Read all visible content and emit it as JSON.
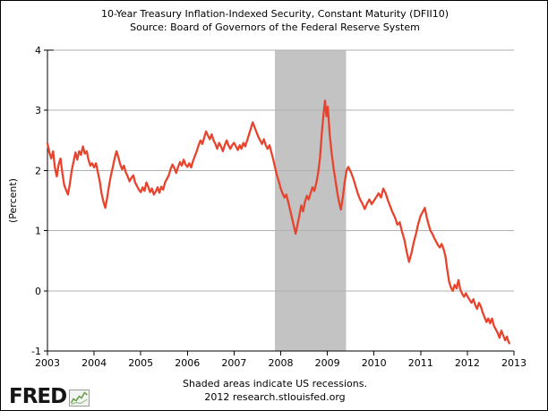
{
  "footer": {
    "note": "Shaded areas indicate US recessions.",
    "credit": "2012 research.stlouisfed.org",
    "logo_text": "FRED"
  },
  "chart_data": {
    "type": "line",
    "title": "10-Year Treasury Inflation-Indexed Security, Constant Maturity (DFII10)",
    "subtitle": "Source: Board of Governors of the Federal Reserve System",
    "xlabel": "",
    "ylabel": "(Percent)",
    "xlim": [
      2003,
      2013
    ],
    "ylim": [
      -1,
      4
    ],
    "x_ticks": [
      2003,
      2004,
      2005,
      2006,
      2007,
      2008,
      2009,
      2010,
      2011,
      2012,
      2013
    ],
    "y_ticks": [
      4,
      3,
      2,
      1,
      0,
      -1
    ],
    "grid": true,
    "legend_position": "none",
    "line_color": "#e8432d",
    "grid_color": "#b0b0b0",
    "axis_color": "#000000",
    "recession_band_color": "#c3c3c3",
    "recession_bands": [
      {
        "start": 2007.88,
        "end": 2009.4
      }
    ],
    "series": [
      {
        "name": "DFII10",
        "points": [
          [
            2003.0,
            2.45
          ],
          [
            2003.04,
            2.3
          ],
          [
            2003.08,
            2.2
          ],
          [
            2003.12,
            2.32
          ],
          [
            2003.16,
            2.05
          ],
          [
            2003.2,
            1.9
          ],
          [
            2003.24,
            2.1
          ],
          [
            2003.28,
            2.2
          ],
          [
            2003.32,
            1.95
          ],
          [
            2003.36,
            1.75
          ],
          [
            2003.4,
            1.68
          ],
          [
            2003.44,
            1.6
          ],
          [
            2003.48,
            1.78
          ],
          [
            2003.52,
            2.0
          ],
          [
            2003.56,
            2.15
          ],
          [
            2003.6,
            2.3
          ],
          [
            2003.64,
            2.18
          ],
          [
            2003.68,
            2.32
          ],
          [
            2003.72,
            2.26
          ],
          [
            2003.76,
            2.4
          ],
          [
            2003.8,
            2.28
          ],
          [
            2003.84,
            2.32
          ],
          [
            2003.88,
            2.18
          ],
          [
            2003.92,
            2.08
          ],
          [
            2003.96,
            2.12
          ],
          [
            2004.0,
            2.05
          ],
          [
            2004.04,
            2.12
          ],
          [
            2004.08,
            1.97
          ],
          [
            2004.12,
            1.82
          ],
          [
            2004.16,
            1.62
          ],
          [
            2004.2,
            1.48
          ],
          [
            2004.24,
            1.38
          ],
          [
            2004.28,
            1.55
          ],
          [
            2004.32,
            1.75
          ],
          [
            2004.36,
            1.92
          ],
          [
            2004.4,
            2.05
          ],
          [
            2004.44,
            2.2
          ],
          [
            2004.48,
            2.32
          ],
          [
            2004.52,
            2.22
          ],
          [
            2004.56,
            2.1
          ],
          [
            2004.6,
            2.02
          ],
          [
            2004.64,
            2.08
          ],
          [
            2004.68,
            1.97
          ],
          [
            2004.72,
            1.9
          ],
          [
            2004.76,
            1.82
          ],
          [
            2004.8,
            1.88
          ],
          [
            2004.84,
            1.92
          ],
          [
            2004.88,
            1.8
          ],
          [
            2004.92,
            1.74
          ],
          [
            2004.96,
            1.68
          ],
          [
            2005.0,
            1.64
          ],
          [
            2005.04,
            1.72
          ],
          [
            2005.08,
            1.66
          ],
          [
            2005.12,
            1.8
          ],
          [
            2005.16,
            1.73
          ],
          [
            2005.2,
            1.64
          ],
          [
            2005.24,
            1.7
          ],
          [
            2005.28,
            1.6
          ],
          [
            2005.32,
            1.65
          ],
          [
            2005.36,
            1.72
          ],
          [
            2005.4,
            1.63
          ],
          [
            2005.44,
            1.73
          ],
          [
            2005.48,
            1.68
          ],
          [
            2005.52,
            1.8
          ],
          [
            2005.56,
            1.86
          ],
          [
            2005.6,
            1.92
          ],
          [
            2005.64,
            2.02
          ],
          [
            2005.68,
            2.1
          ],
          [
            2005.72,
            2.04
          ],
          [
            2005.76,
            1.96
          ],
          [
            2005.8,
            2.06
          ],
          [
            2005.84,
            2.14
          ],
          [
            2005.88,
            2.08
          ],
          [
            2005.92,
            2.18
          ],
          [
            2005.96,
            2.1
          ],
          [
            2006.0,
            2.06
          ],
          [
            2006.04,
            2.12
          ],
          [
            2006.08,
            2.05
          ],
          [
            2006.12,
            2.16
          ],
          [
            2006.16,
            2.24
          ],
          [
            2006.2,
            2.32
          ],
          [
            2006.24,
            2.42
          ],
          [
            2006.28,
            2.5
          ],
          [
            2006.32,
            2.44
          ],
          [
            2006.36,
            2.55
          ],
          [
            2006.4,
            2.65
          ],
          [
            2006.44,
            2.58
          ],
          [
            2006.48,
            2.52
          ],
          [
            2006.52,
            2.6
          ],
          [
            2006.56,
            2.5
          ],
          [
            2006.6,
            2.44
          ],
          [
            2006.64,
            2.36
          ],
          [
            2006.68,
            2.46
          ],
          [
            2006.72,
            2.4
          ],
          [
            2006.76,
            2.32
          ],
          [
            2006.8,
            2.42
          ],
          [
            2006.84,
            2.5
          ],
          [
            2006.88,
            2.42
          ],
          [
            2006.92,
            2.36
          ],
          [
            2006.96,
            2.42
          ],
          [
            2007.0,
            2.46
          ],
          [
            2007.04,
            2.4
          ],
          [
            2007.08,
            2.34
          ],
          [
            2007.12,
            2.42
          ],
          [
            2007.16,
            2.36
          ],
          [
            2007.2,
            2.46
          ],
          [
            2007.24,
            2.4
          ],
          [
            2007.28,
            2.5
          ],
          [
            2007.32,
            2.6
          ],
          [
            2007.36,
            2.7
          ],
          [
            2007.4,
            2.8
          ],
          [
            2007.44,
            2.72
          ],
          [
            2007.48,
            2.64
          ],
          [
            2007.52,
            2.56
          ],
          [
            2007.56,
            2.5
          ],
          [
            2007.6,
            2.44
          ],
          [
            2007.64,
            2.52
          ],
          [
            2007.68,
            2.42
          ],
          [
            2007.72,
            2.36
          ],
          [
            2007.76,
            2.42
          ],
          [
            2007.8,
            2.3
          ],
          [
            2007.84,
            2.18
          ],
          [
            2007.88,
            2.05
          ],
          [
            2007.92,
            1.92
          ],
          [
            2007.96,
            1.82
          ],
          [
            2008.0,
            1.7
          ],
          [
            2008.04,
            1.62
          ],
          [
            2008.08,
            1.55
          ],
          [
            2008.12,
            1.6
          ],
          [
            2008.16,
            1.48
          ],
          [
            2008.2,
            1.35
          ],
          [
            2008.24,
            1.22
          ],
          [
            2008.28,
            1.08
          ],
          [
            2008.32,
            0.95
          ],
          [
            2008.36,
            1.1
          ],
          [
            2008.4,
            1.25
          ],
          [
            2008.44,
            1.42
          ],
          [
            2008.48,
            1.32
          ],
          [
            2008.52,
            1.48
          ],
          [
            2008.56,
            1.58
          ],
          [
            2008.6,
            1.52
          ],
          [
            2008.64,
            1.62
          ],
          [
            2008.68,
            1.72
          ],
          [
            2008.72,
            1.66
          ],
          [
            2008.76,
            1.78
          ],
          [
            2008.8,
            1.95
          ],
          [
            2008.84,
            2.2
          ],
          [
            2008.88,
            2.6
          ],
          [
            2008.92,
            2.95
          ],
          [
            2008.95,
            3.16
          ],
          [
            2008.98,
            2.9
          ],
          [
            2009.01,
            3.06
          ],
          [
            2009.05,
            2.6
          ],
          [
            2009.09,
            2.3
          ],
          [
            2009.13,
            2.05
          ],
          [
            2009.17,
            1.85
          ],
          [
            2009.21,
            1.65
          ],
          [
            2009.25,
            1.48
          ],
          [
            2009.29,
            1.35
          ],
          [
            2009.33,
            1.55
          ],
          [
            2009.37,
            1.8
          ],
          [
            2009.41,
            2.0
          ],
          [
            2009.45,
            2.06
          ],
          [
            2009.5,
            1.98
          ],
          [
            2009.55,
            1.88
          ],
          [
            2009.6,
            1.75
          ],
          [
            2009.65,
            1.62
          ],
          [
            2009.7,
            1.52
          ],
          [
            2009.75,
            1.45
          ],
          [
            2009.8,
            1.36
          ],
          [
            2009.85,
            1.45
          ],
          [
            2009.9,
            1.52
          ],
          [
            2009.95,
            1.44
          ],
          [
            2010.0,
            1.5
          ],
          [
            2010.05,
            1.56
          ],
          [
            2010.1,
            1.62
          ],
          [
            2010.15,
            1.55
          ],
          [
            2010.2,
            1.7
          ],
          [
            2010.25,
            1.62
          ],
          [
            2010.3,
            1.5
          ],
          [
            2010.35,
            1.4
          ],
          [
            2010.4,
            1.3
          ],
          [
            2010.45,
            1.22
          ],
          [
            2010.5,
            1.1
          ],
          [
            2010.55,
            1.14
          ],
          [
            2010.6,
            0.98
          ],
          [
            2010.65,
            0.85
          ],
          [
            2010.7,
            0.65
          ],
          [
            2010.75,
            0.48
          ],
          [
            2010.8,
            0.62
          ],
          [
            2010.85,
            0.8
          ],
          [
            2010.9,
            0.95
          ],
          [
            2010.95,
            1.12
          ],
          [
            2011.0,
            1.25
          ],
          [
            2011.05,
            1.32
          ],
          [
            2011.09,
            1.38
          ],
          [
            2011.13,
            1.22
          ],
          [
            2011.17,
            1.1
          ],
          [
            2011.21,
            1.0
          ],
          [
            2011.25,
            0.95
          ],
          [
            2011.29,
            0.88
          ],
          [
            2011.33,
            0.82
          ],
          [
            2011.37,
            0.76
          ],
          [
            2011.41,
            0.72
          ],
          [
            2011.45,
            0.78
          ],
          [
            2011.49,
            0.7
          ],
          [
            2011.53,
            0.58
          ],
          [
            2011.57,
            0.35
          ],
          [
            2011.61,
            0.15
          ],
          [
            2011.65,
            0.05
          ],
          [
            2011.69,
            0.0
          ],
          [
            2011.73,
            0.1
          ],
          [
            2011.77,
            0.04
          ],
          [
            2011.81,
            0.18
          ],
          [
            2011.85,
            0.02
          ],
          [
            2011.89,
            -0.05
          ],
          [
            2011.93,
            -0.1
          ],
          [
            2011.97,
            -0.04
          ],
          [
            2012.01,
            -0.1
          ],
          [
            2012.05,
            -0.15
          ],
          [
            2012.09,
            -0.2
          ],
          [
            2012.13,
            -0.14
          ],
          [
            2012.17,
            -0.24
          ],
          [
            2012.21,
            -0.3
          ],
          [
            2012.25,
            -0.2
          ],
          [
            2012.29,
            -0.26
          ],
          [
            2012.33,
            -0.36
          ],
          [
            2012.37,
            -0.44
          ],
          [
            2012.41,
            -0.52
          ],
          [
            2012.45,
            -0.46
          ],
          [
            2012.49,
            -0.54
          ],
          [
            2012.53,
            -0.46
          ],
          [
            2012.57,
            -0.58
          ],
          [
            2012.61,
            -0.64
          ],
          [
            2012.65,
            -0.7
          ],
          [
            2012.69,
            -0.78
          ],
          [
            2012.73,
            -0.66
          ],
          [
            2012.77,
            -0.74
          ],
          [
            2012.81,
            -0.82
          ],
          [
            2012.85,
            -0.76
          ],
          [
            2012.88,
            -0.84
          ],
          [
            2012.9,
            -0.87
          ]
        ]
      }
    ]
  }
}
